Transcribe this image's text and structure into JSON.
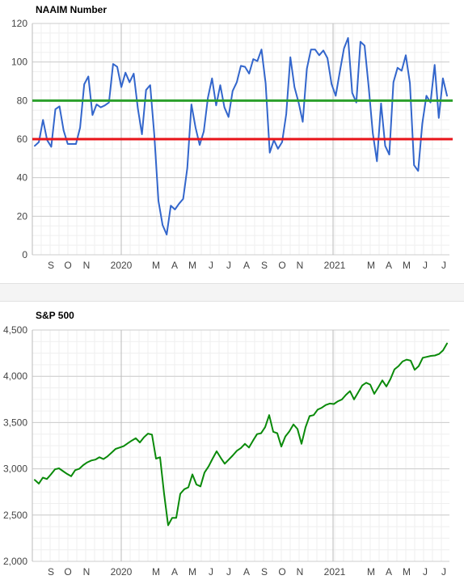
{
  "chart_data": [
    {
      "type": "line",
      "title": "NAAIM Number",
      "ylim": [
        0,
        120
      ],
      "y_ticks": [
        0,
        20,
        40,
        60,
        80,
        100,
        120
      ],
      "y_tick_labels": [
        "0",
        "20",
        "40",
        "60",
        "80",
        "100",
        "120"
      ],
      "x_tick_labels": [
        "S",
        "O",
        "N",
        "2020",
        "M",
        "A",
        "M",
        "J",
        "J",
        "A",
        "S",
        "O",
        "N",
        "2021",
        "M",
        "A",
        "M",
        "J",
        "J"
      ],
      "grid": true,
      "reference_lines": [
        {
          "value": 80,
          "color": "#2ca02c"
        },
        {
          "value": 60,
          "color": "#e8141a"
        }
      ],
      "series": [
        {
          "color": "#3366cc",
          "values": [
            56.5,
            58.5,
            70,
            59.5,
            56,
            75.5,
            77,
            64.5,
            57.5,
            57.5,
            57.5,
            66,
            88.5,
            92.5,
            72.5,
            78,
            76.5,
            77.5,
            79,
            99,
            97.5,
            87,
            94.5,
            89.5,
            94,
            76,
            62.5,
            85.5,
            88,
            62,
            28,
            15.5,
            10.5,
            25.5,
            23.5,
            26.5,
            29,
            45,
            78,
            66,
            57,
            64,
            81.5,
            91.5,
            77.5,
            88,
            76.5,
            71.5,
            85,
            89.5,
            98,
            97.5,
            94,
            101.5,
            100.5,
            106.5,
            89,
            53,
            59.5,
            55,
            58.5,
            73,
            102.5,
            87,
            79,
            69,
            96.5,
            106.5,
            106.5,
            103.5,
            106,
            102,
            88.5,
            82.5,
            95,
            107,
            112.5,
            84,
            79,
            110.5,
            108.5,
            87,
            63,
            48.5,
            78.5,
            56.5,
            52,
            89.5,
            97,
            95.5,
            103.5,
            89,
            46.5,
            43.5,
            68,
            82.5,
            79,
            98.5,
            71,
            91.5,
            82.5
          ]
        }
      ]
    },
    {
      "type": "line",
      "title": "S&P 500",
      "ylim": [
        2000,
        4500
      ],
      "y_ticks": [
        2000,
        2500,
        3000,
        3500,
        4000,
        4500
      ],
      "y_tick_labels": [
        "2,000",
        "2,500",
        "3,000",
        "3,500",
        "4,000",
        "4,500"
      ],
      "x_tick_labels": [
        "S",
        "O",
        "N",
        "2020",
        "M",
        "A",
        "M",
        "J",
        "J",
        "A",
        "S",
        "O",
        "N",
        "2021",
        "M",
        "A",
        "M",
        "J",
        "J"
      ],
      "grid": true,
      "series": [
        {
          "color": "#0a8a0a",
          "values": [
            2880,
            2840,
            2905,
            2890,
            2940,
            2995,
            3005,
            2975,
            2945,
            2920,
            2985,
            3000,
            3040,
            3070,
            3090,
            3100,
            3125,
            3105,
            3135,
            3175,
            3215,
            3230,
            3245,
            3275,
            3305,
            3330,
            3285,
            3340,
            3380,
            3370,
            3110,
            3125,
            2730,
            2390,
            2470,
            2470,
            2730,
            2780,
            2800,
            2940,
            2830,
            2810,
            2960,
            3025,
            3110,
            3190,
            3120,
            3055,
            3100,
            3145,
            3195,
            3225,
            3270,
            3230,
            3305,
            3375,
            3385,
            3450,
            3580,
            3400,
            3385,
            3240,
            3350,
            3405,
            3480,
            3430,
            3270,
            3450,
            3570,
            3580,
            3640,
            3660,
            3690,
            3705,
            3700,
            3730,
            3750,
            3800,
            3840,
            3750,
            3825,
            3900,
            3930,
            3910,
            3810,
            3880,
            3955,
            3890,
            3970,
            4075,
            4110,
            4160,
            4180,
            4170,
            4070,
            4110,
            4200,
            4210,
            4220,
            4225,
            4240,
            4280,
            4355
          ]
        }
      ]
    }
  ]
}
